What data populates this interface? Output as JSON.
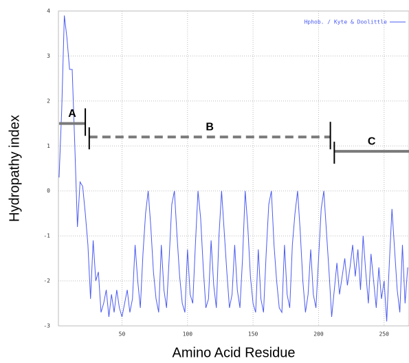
{
  "chart_data": {
    "type": "line",
    "xlabel": "Amino Acid Residue",
    "ylabel": "Hydropathy index",
    "xlim": [
      1.5,
      269
    ],
    "ylim": [
      -3,
      4
    ],
    "xticks": [
      50,
      100,
      150,
      200,
      250
    ],
    "yticks": [
      -3,
      -2,
      -1,
      0,
      1,
      2,
      3,
      4
    ],
    "grid": true,
    "legend": "top-right",
    "x": [
      2,
      4,
      6,
      8,
      10,
      12,
      14,
      16,
      18,
      20,
      22,
      24,
      26,
      28,
      30,
      32,
      34,
      36,
      38,
      40,
      42,
      44,
      46,
      48,
      50,
      52,
      54,
      56,
      58,
      60,
      62,
      64,
      66,
      68,
      70,
      72,
      74,
      76,
      78,
      80,
      82,
      84,
      86,
      88,
      90,
      92,
      94,
      96,
      98,
      100,
      102,
      104,
      106,
      108,
      110,
      112,
      114,
      116,
      118,
      120,
      122,
      124,
      126,
      128,
      130,
      132,
      134,
      136,
      138,
      140,
      142,
      144,
      146,
      148,
      150,
      152,
      154,
      156,
      158,
      160,
      162,
      164,
      166,
      168,
      170,
      172,
      174,
      176,
      178,
      180,
      182,
      184,
      186,
      188,
      190,
      192,
      194,
      196,
      198,
      200,
      202,
      204,
      206,
      208,
      210,
      212,
      214,
      216,
      218,
      220,
      222,
      224,
      226,
      228,
      230,
      232,
      234,
      236,
      238,
      240,
      242,
      244,
      246,
      248,
      250,
      252,
      254,
      256,
      258,
      260,
      262,
      264,
      266,
      268
    ],
    "series": [
      {
        "name": "Hphob. / Kyte & Doolittle",
        "color": "#4a5af0",
        "values": [
          0.3,
          1.8,
          3.9,
          3.4,
          2.7,
          2.7,
          1.0,
          -0.8,
          0.2,
          0.1,
          -0.5,
          -1.2,
          -2.4,
          -1.1,
          -2.0,
          -1.8,
          -2.7,
          -2.5,
          -2.2,
          -2.8,
          -2.3,
          -2.7,
          -2.2,
          -2.6,
          -2.8,
          -2.5,
          -2.2,
          -2.7,
          -2.4,
          -1.2,
          -2.0,
          -2.6,
          -1.4,
          -0.5,
          0.0,
          -0.8,
          -1.8,
          -2.4,
          -2.7,
          -1.2,
          -2.2,
          -2.6,
          -1.5,
          -0.3,
          0.0,
          -1.0,
          -1.9,
          -2.5,
          -2.7,
          -1.3,
          -2.3,
          -2.5,
          -1.2,
          0.0,
          -0.6,
          -1.7,
          -2.6,
          -2.4,
          -1.1,
          -2.1,
          -2.6,
          -1.0,
          0.0,
          -0.9,
          -1.8,
          -2.6,
          -2.3,
          -1.2,
          -2.2,
          -2.6,
          -1.5,
          0.0,
          -0.8,
          -1.9,
          -2.5,
          -2.7,
          -1.3,
          -2.4,
          -2.7,
          -1.4,
          -0.3,
          0.0,
          -1.2,
          -2.0,
          -2.6,
          -2.7,
          -1.2,
          -2.3,
          -2.6,
          -1.2,
          -0.5,
          0.0,
          -0.9,
          -2.0,
          -2.7,
          -2.3,
          -1.3,
          -2.3,
          -2.6,
          -1.5,
          -0.4,
          0.0,
          -0.9,
          -1.8,
          -2.8,
          -2.2,
          -1.6,
          -2.3,
          -1.9,
          -1.5,
          -2.1,
          -1.7,
          -1.2,
          -1.9,
          -1.3,
          -2.2,
          -1.0,
          -1.8,
          -2.5,
          -1.4,
          -2.0,
          -2.6,
          -1.7,
          -2.4,
          -2.0,
          -2.9,
          -1.6,
          -0.4,
          -1.3,
          -2.2,
          -2.7,
          -1.2,
          -2.5,
          -1.7
        ]
      }
    ],
    "segments": [
      {
        "label": "A",
        "start": 2,
        "end": 22,
        "value": 1.5,
        "color": "#7a7a7a",
        "dashed": false
      },
      {
        "label": "B",
        "start": 25,
        "end": 209,
        "value": 1.2,
        "color": "#7a7a7a",
        "dashed": true
      },
      {
        "label": "C",
        "start": 212,
        "end": 269,
        "value": 0.88,
        "color": "#7a7a7a",
        "dashed": false
      }
    ]
  }
}
